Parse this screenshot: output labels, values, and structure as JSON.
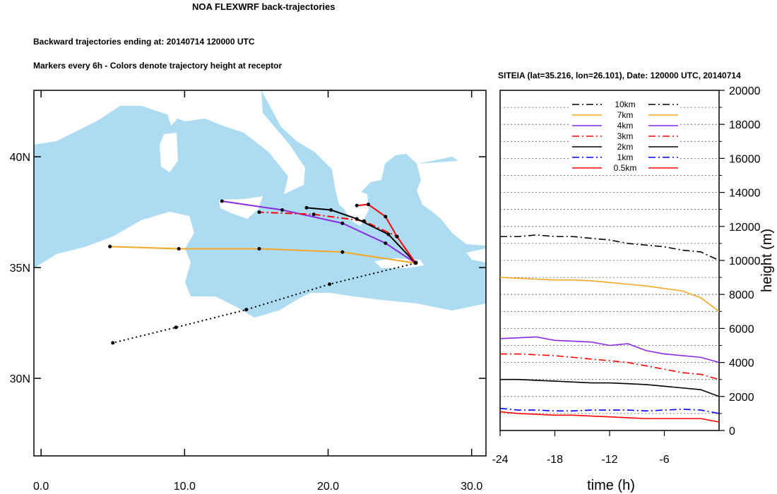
{
  "header": {
    "title": "NOA FLEXWRF back-trajectories",
    "subtitle": "Backward trajectories ending at: 20140714  120000 UTC",
    "note": "Markers every 6h - Colors denote trajectory height at receptor"
  },
  "chart_data": [
    {
      "type": "line",
      "subtype": "trajectory-map",
      "xlim": [
        -0.5,
        31
      ],
      "ylim": [
        26.5,
        43
      ],
      "x_ticks": [
        "0.0",
        "10.0",
        "20.0",
        "30.0"
      ],
      "y_ticks": [
        "30N",
        "35N",
        "40N"
      ],
      "x_tick_values": [
        0,
        10,
        20,
        30
      ],
      "y_tick_values": [
        30,
        35,
        40
      ],
      "receptor": {
        "lon": 26.101,
        "lat": 35.216
      },
      "series": [
        {
          "key": "10km",
          "color": "#000000",
          "dash": "dashdot",
          "points": []
        },
        {
          "key": "7km",
          "color": "#F5A623",
          "dash": "solid",
          "points": [
            [
              26.1,
              35.2
            ],
            [
              21,
              35.7
            ],
            [
              15.2,
              35.85
            ],
            [
              9.6,
              35.85
            ],
            [
              4.8,
              35.95
            ]
          ]
        },
        {
          "key": "4km",
          "color": "#8A2BE2",
          "dash": "solid",
          "points": [
            [
              26.1,
              35.2
            ],
            [
              24,
              36.1
            ],
            [
              21,
              37
            ],
            [
              16.8,
              37.6
            ],
            [
              12.6,
              38.0
            ]
          ]
        },
        {
          "key": "3km",
          "color": "#FF0000",
          "dash": "dashdot",
          "points": [
            [
              26.1,
              35.2
            ],
            [
              24.8,
              36.4
            ],
            [
              22.5,
              37.1
            ],
            [
              19,
              37.4
            ],
            [
              15.2,
              37.5
            ]
          ]
        },
        {
          "key": "2km",
          "color": "#000000",
          "dash": "solid",
          "points": [
            [
              26.1,
              35.2
            ],
            [
              24.2,
              36.5
            ],
            [
              22,
              37.2
            ],
            [
              20.2,
              37.6
            ],
            [
              18.5,
              37.7
            ]
          ]
        },
        {
          "key": "1km",
          "color": "#000000",
          "dash": "dotted",
          "points": [
            [
              26.1,
              35.2
            ],
            [
              20.1,
              34.25
            ],
            [
              14.3,
              33.1
            ],
            [
              9.4,
              32.3
            ],
            [
              5,
              31.6
            ]
          ]
        },
        {
          "key": "0.5km",
          "color": "#FF0000",
          "dash": "solid",
          "points": [
            [
              26.1,
              35.2
            ],
            [
              24.8,
              36.4
            ],
            [
              24,
              37.3
            ],
            [
              22.8,
              37.85
            ],
            [
              22,
              37.8
            ]
          ]
        }
      ]
    },
    {
      "type": "line",
      "title": "SITEIA (lat=35.216,  lon=26.101), Date: 120000 UTC, 20140714",
      "xlabel": "time (h)",
      "ylabel": "height (m)",
      "xlim": [
        -24,
        0
      ],
      "ylim": [
        0,
        20000
      ],
      "x_ticks": [
        "-24",
        "-18",
        "-12",
        "-6"
      ],
      "x_tick_values": [
        -24,
        -18,
        -12,
        -6
      ],
      "y_ticks": [
        "0",
        "2000",
        "4000",
        "6000",
        "8000",
        "10000",
        "12000",
        "14000",
        "16000",
        "18000",
        "20000"
      ],
      "y_tick_values": [
        0,
        2000,
        4000,
        6000,
        8000,
        10000,
        12000,
        14000,
        16000,
        18000,
        20000
      ],
      "grid": true,
      "legend_position": "top-center",
      "series": [
        {
          "name": "10km",
          "color": "#000000",
          "dash": "dashdot",
          "x": [
            -24,
            -22,
            -20,
            -18,
            -16,
            -14,
            -12,
            -10,
            -8,
            -6,
            -4,
            -2,
            0
          ],
          "values": [
            11400,
            11400,
            11500,
            11400,
            11400,
            11300,
            11200,
            11000,
            10900,
            10800,
            10600,
            10500,
            10000
          ]
        },
        {
          "name": "7km",
          "color": "#F5A623",
          "dash": "solid",
          "x": [
            -24,
            -22,
            -20,
            -18,
            -16,
            -14,
            -12,
            -10,
            -8,
            -6,
            -4,
            -2,
            0
          ],
          "values": [
            9000,
            8950,
            8900,
            8850,
            8850,
            8800,
            8700,
            8600,
            8500,
            8350,
            8200,
            7800,
            7000
          ]
        },
        {
          "name": "4km",
          "color": "#8A2BE2",
          "dash": "solid",
          "x": [
            -24,
            -22,
            -20,
            -18,
            -16,
            -14,
            -12,
            -10,
            -8,
            -6,
            -4,
            -2,
            0
          ],
          "values": [
            5400,
            5450,
            5500,
            5300,
            5250,
            5200,
            5000,
            5100,
            4700,
            4500,
            4400,
            4300,
            4000
          ]
        },
        {
          "name": "3km",
          "color": "#FF0000",
          "dash": "dashdot",
          "x": [
            -24,
            -22,
            -20,
            -18,
            -16,
            -14,
            -12,
            -10,
            -8,
            -6,
            -4,
            -2,
            0
          ],
          "values": [
            4500,
            4500,
            4450,
            4400,
            4300,
            4200,
            4100,
            4000,
            3800,
            3600,
            3400,
            3300,
            3000
          ]
        },
        {
          "name": "2km",
          "color": "#000000",
          "dash": "solid",
          "x": [
            -24,
            -22,
            -20,
            -18,
            -16,
            -14,
            -12,
            -10,
            -8,
            -6,
            -4,
            -2,
            0
          ],
          "values": [
            3000,
            3000,
            2950,
            2900,
            2850,
            2800,
            2800,
            2750,
            2700,
            2600,
            2500,
            2400,
            2000
          ]
        },
        {
          "name": "1km",
          "color": "#0000FF",
          "dash": "dashdot",
          "x": [
            -24,
            -22,
            -20,
            -18,
            -16,
            -14,
            -12,
            -10,
            -8,
            -6,
            -4,
            -2,
            0
          ],
          "values": [
            1300,
            1200,
            1200,
            1150,
            1150,
            1200,
            1200,
            1200,
            1150,
            1200,
            1250,
            1200,
            1000
          ]
        },
        {
          "name": "0.5km",
          "color": "#FF0000",
          "dash": "solid",
          "x": [
            -24,
            -22,
            -20,
            -18,
            -16,
            -14,
            -12,
            -10,
            -8,
            -6,
            -4,
            -2,
            0
          ],
          "values": [
            1100,
            1000,
            950,
            900,
            900,
            850,
            800,
            750,
            700,
            700,
            700,
            700,
            500
          ]
        }
      ]
    }
  ]
}
